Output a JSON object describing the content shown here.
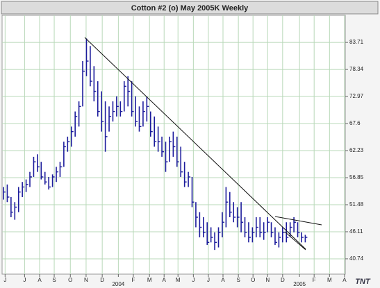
{
  "chart_data": {
    "type": "hlc-bar",
    "title": "Cotton #2 (o) May 2005K Weekly",
    "logo": "TNT",
    "color": "#1c1c9c",
    "grid": true,
    "high": [
      55,
      55.5,
      53,
      52,
      55,
      56,
      56.5,
      58,
      61,
      61.5,
      60,
      58,
      57,
      57.5,
      59,
      60,
      64,
      65,
      67,
      70,
      72,
      80,
      84.5,
      83,
      79,
      76,
      74,
      72,
      71,
      72,
      73,
      72,
      76,
      77,
      76,
      73,
      71,
      72,
      73,
      70,
      69,
      67,
      65,
      64,
      65,
      66,
      65,
      63,
      60,
      58,
      57,
      52,
      50,
      49,
      48,
      47,
      46,
      47,
      50,
      55,
      54,
      52,
      51,
      52,
      49,
      48,
      47,
      49,
      49,
      48,
      49,
      48,
      47,
      46,
      47,
      48,
      48,
      49,
      48,
      46,
      45.5
    ],
    "low": [
      52.5,
      52,
      49,
      48.5,
      50,
      53,
      54,
      55,
      57,
      58,
      56.5,
      55.5,
      54.5,
      55,
      56,
      57,
      59,
      62,
      63,
      65,
      67,
      71,
      77,
      75,
      72,
      69,
      66,
      62,
      66,
      68,
      69,
      69,
      70,
      71,
      69,
      67,
      66,
      67,
      68,
      65,
      63,
      62,
      61,
      58,
      60,
      61,
      59,
      57,
      55,
      55,
      51,
      47,
      45,
      45,
      43.5,
      44,
      42.5,
      43,
      45,
      47,
      49,
      48,
      47,
      46,
      45,
      44,
      44,
      45,
      45,
      44.5,
      46,
      45,
      43.5,
      43,
      44,
      44,
      45,
      46,
      45,
      44,
      44
    ],
    "close": [
      54,
      53,
      50,
      51,
      54,
      55,
      55.5,
      57,
      60,
      59,
      57,
      56,
      55,
      57,
      58,
      59,
      63,
      64,
      66,
      69,
      71,
      78,
      80,
      76,
      74,
      70,
      68,
      65,
      69,
      70,
      71,
      70,
      75,
      74,
      70,
      68,
      67,
      70,
      71,
      66,
      64,
      64,
      62,
      60,
      64,
      63,
      60,
      58,
      56,
      57,
      52,
      49,
      47,
      46,
      44,
      45,
      44,
      46,
      48,
      52,
      50,
      49,
      49,
      48,
      46,
      45,
      46,
      47,
      46,
      46,
      48,
      46,
      44,
      45,
      46,
      45,
      47,
      48,
      46,
      45,
      45
    ],
    "xlim": [
      -0.4,
      91.1
    ],
    "xticks": [
      {
        "value": 0.4,
        "label": "J"
      },
      {
        "value": 5.6,
        "label": "J"
      },
      {
        "value": 9.6,
        "label": "A"
      },
      {
        "value": 13.5,
        "label": "S"
      },
      {
        "value": 17.8,
        "label": "O"
      },
      {
        "value": 22,
        "label": "N"
      },
      {
        "value": 26.3,
        "label": "D"
      },
      {
        "value": 30.6,
        "label": "2004"
      },
      {
        "value": 34.6,
        "label": "F"
      },
      {
        "value": 38.9,
        "label": "M"
      },
      {
        "value": 42.8,
        "label": "A"
      },
      {
        "value": 46.5,
        "label": "M"
      },
      {
        "value": 50.6,
        "label": "J"
      },
      {
        "value": 54.6,
        "label": "J"
      },
      {
        "value": 58.5,
        "label": "A"
      },
      {
        "value": 62.6,
        "label": "S"
      },
      {
        "value": 66.5,
        "label": "O"
      },
      {
        "value": 70.4,
        "label": "N"
      },
      {
        "value": 74.4,
        "label": "D"
      },
      {
        "value": 78.9,
        "label": "2005"
      },
      {
        "value": 82.8,
        "label": "F"
      },
      {
        "value": 86.9,
        "label": "M"
      },
      {
        "value": 90.9,
        "label": "A"
      }
    ],
    "ylim": [
      37.7,
      89.1
    ],
    "yticks": [
      40.74,
      46.11,
      51.48,
      56.85,
      62.23,
      67.6,
      72.97,
      78.34,
      83.71
    ]
  }
}
